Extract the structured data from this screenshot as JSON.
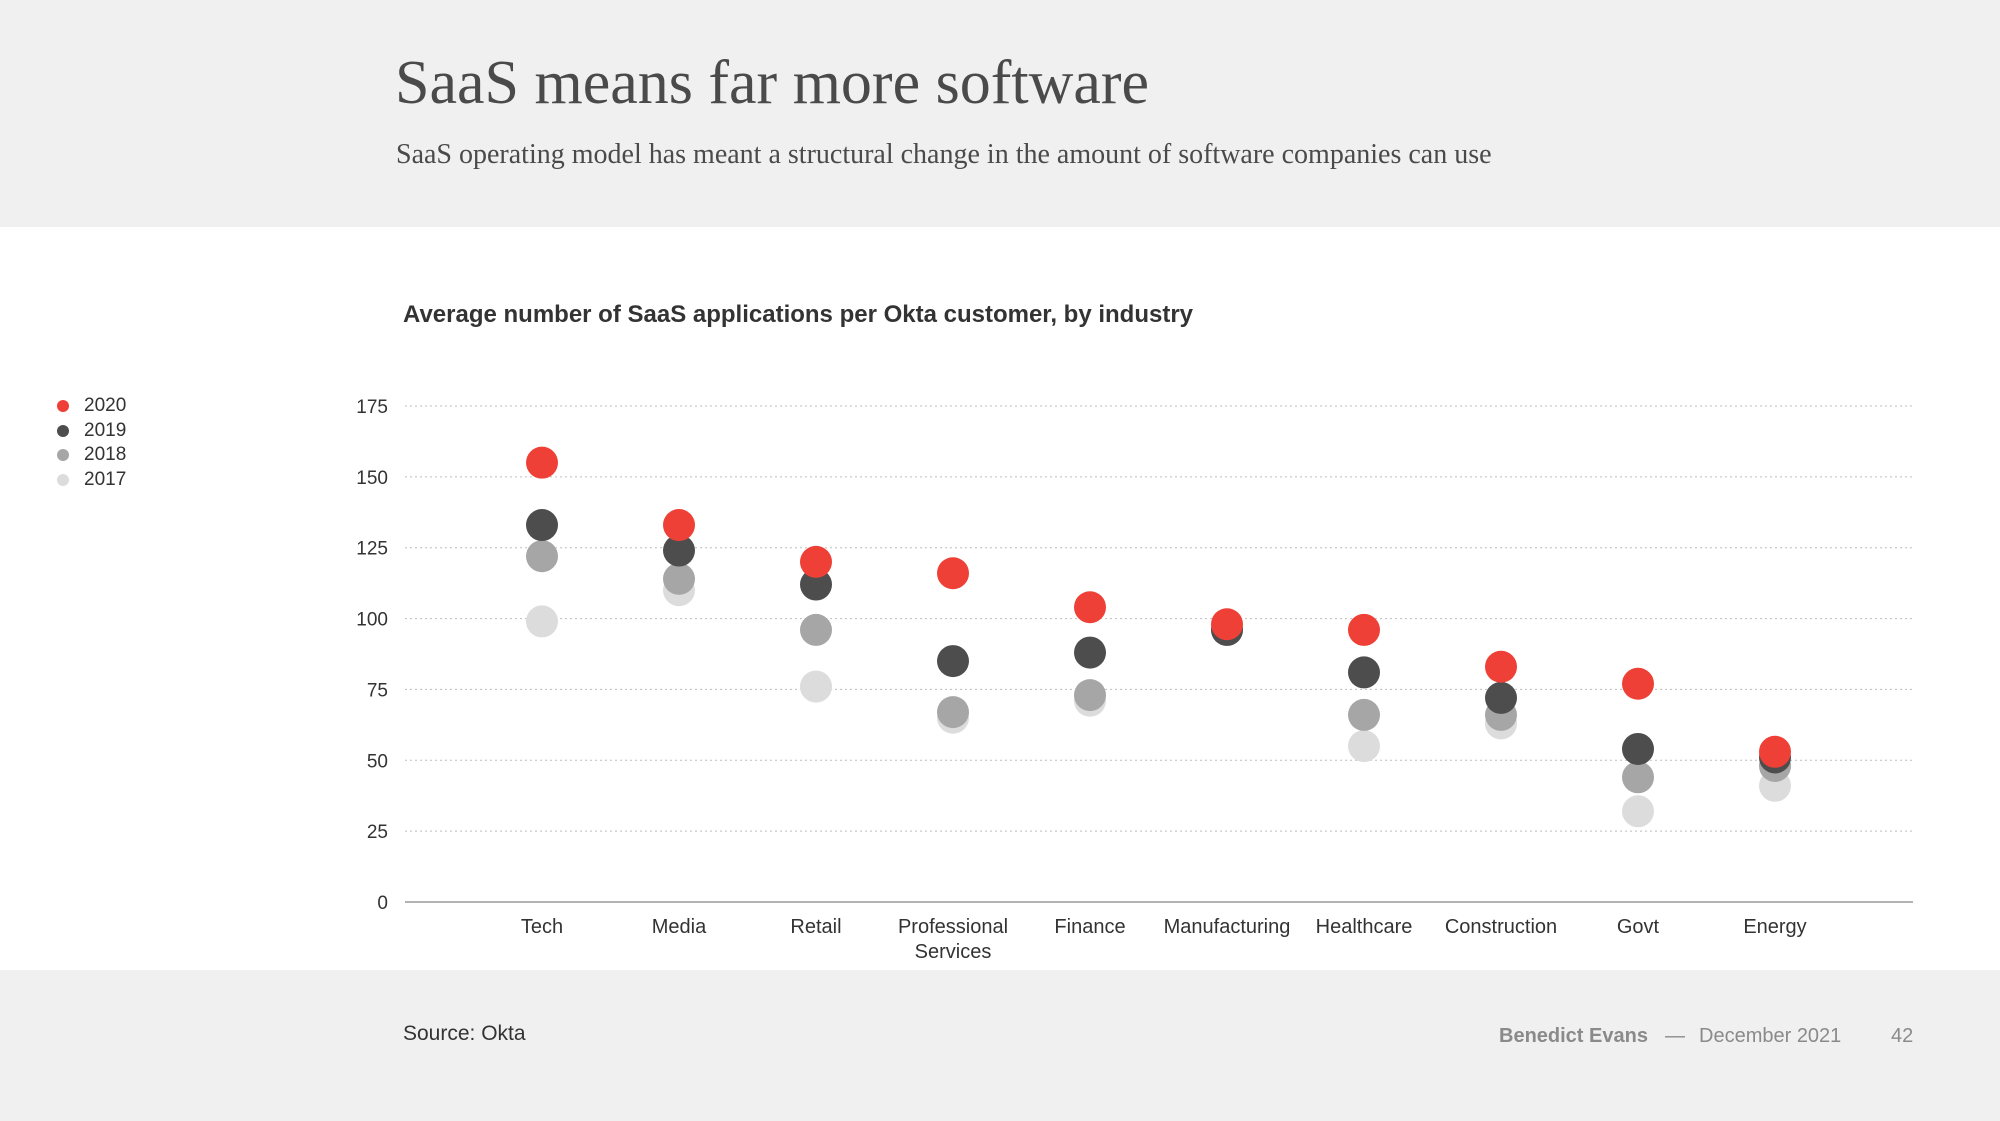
{
  "slide": {
    "title": "SaaS means far more software",
    "subtitle": "SaaS operating model has meant a structural change in the amount of software companies can use"
  },
  "footer": {
    "source": "Source: Okta",
    "author": "Benedict Evans",
    "dash": "—",
    "date": "December 2021",
    "page": "42"
  },
  "chart_data": {
    "type": "scatter",
    "title": "Average number of SaaS applications per Okta customer, by industry",
    "xlabel": "",
    "ylabel": "",
    "ylim": [
      0,
      175
    ],
    "yticks": [
      0,
      25,
      50,
      75,
      100,
      125,
      150,
      175
    ],
    "grid": true,
    "legend_position": "left",
    "categories": [
      "Tech",
      "Media",
      "Retail",
      "Professional Services",
      "Finance",
      "Manufacturing",
      "Healthcare",
      "Construction",
      "Govt",
      "Energy"
    ],
    "series": [
      {
        "name": "2017",
        "color": "#dcdcdc",
        "values": [
          99,
          110,
          76,
          65,
          71,
          96,
          55,
          63,
          32,
          41
        ]
      },
      {
        "name": "2018",
        "color": "#a6a6a6",
        "values": [
          122,
          114,
          96,
          67,
          73,
          96,
          66,
          66,
          44,
          48
        ]
      },
      {
        "name": "2019",
        "color": "#4d4d4d",
        "values": [
          133,
          124,
          112,
          85,
          88,
          96,
          81,
          72,
          54,
          51
        ]
      },
      {
        "name": "2020",
        "color": "#ee4036",
        "values": [
          155,
          133,
          120,
          116,
          104,
          98,
          96,
          83,
          77,
          53
        ]
      }
    ],
    "legend_order": [
      "2020",
      "2019",
      "2018",
      "2017"
    ]
  }
}
